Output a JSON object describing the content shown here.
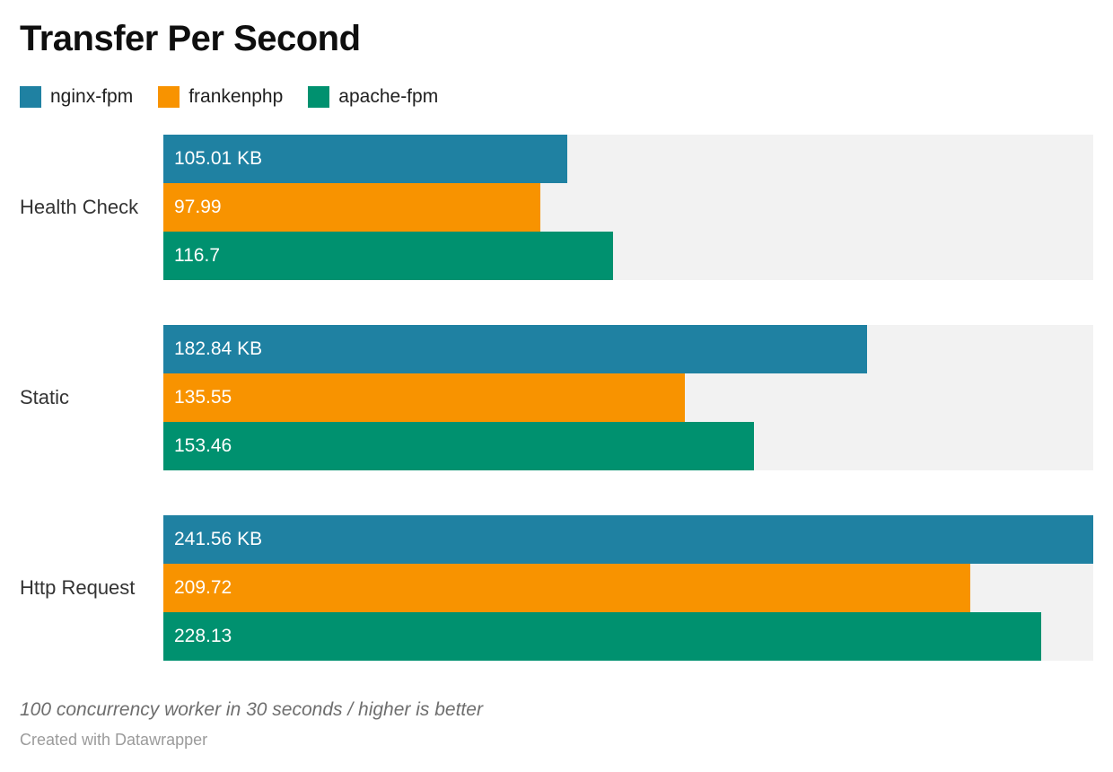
{
  "title": "Transfer Per Second",
  "legend": [
    {
      "label": "nginx-fpm",
      "color": "#1f81a2"
    },
    {
      "label": "frankenphp",
      "color": "#f89300"
    },
    {
      "label": "apache-fpm",
      "color": "#00916f"
    }
  ],
  "chart_data": {
    "type": "bar",
    "orientation": "horizontal",
    "title": "Transfer Per Second",
    "categories": [
      "Health Check",
      "Static",
      "Http Request"
    ],
    "series": [
      {
        "name": "nginx-fpm",
        "color": "#1f81a2",
        "values": [
          105.01,
          182.84,
          241.56
        ],
        "labels": [
          "105.01 KB",
          "182.84 KB",
          "241.56 KB"
        ]
      },
      {
        "name": "frankenphp",
        "color": "#f89300",
        "values": [
          97.99,
          135.55,
          209.72
        ],
        "labels": [
          "97.99",
          "135.55",
          "209.72"
        ]
      },
      {
        "name": "apache-fpm",
        "color": "#00916f",
        "values": [
          116.7,
          153.46,
          228.13
        ],
        "labels": [
          "116.7",
          "153.46",
          "228.13"
        ]
      }
    ],
    "xlim": [
      0,
      241.56
    ],
    "value_unit": "KB",
    "track_color": "#f2f2f2",
    "grid": false,
    "legend_position": "top",
    "note": "100 concurrency worker in 30 seconds / higher is better",
    "attribution": "Created with Datawrapper"
  },
  "footer": {
    "note": "100 concurrency worker in 30 seconds / higher is better",
    "attribution": "Created with Datawrapper"
  }
}
